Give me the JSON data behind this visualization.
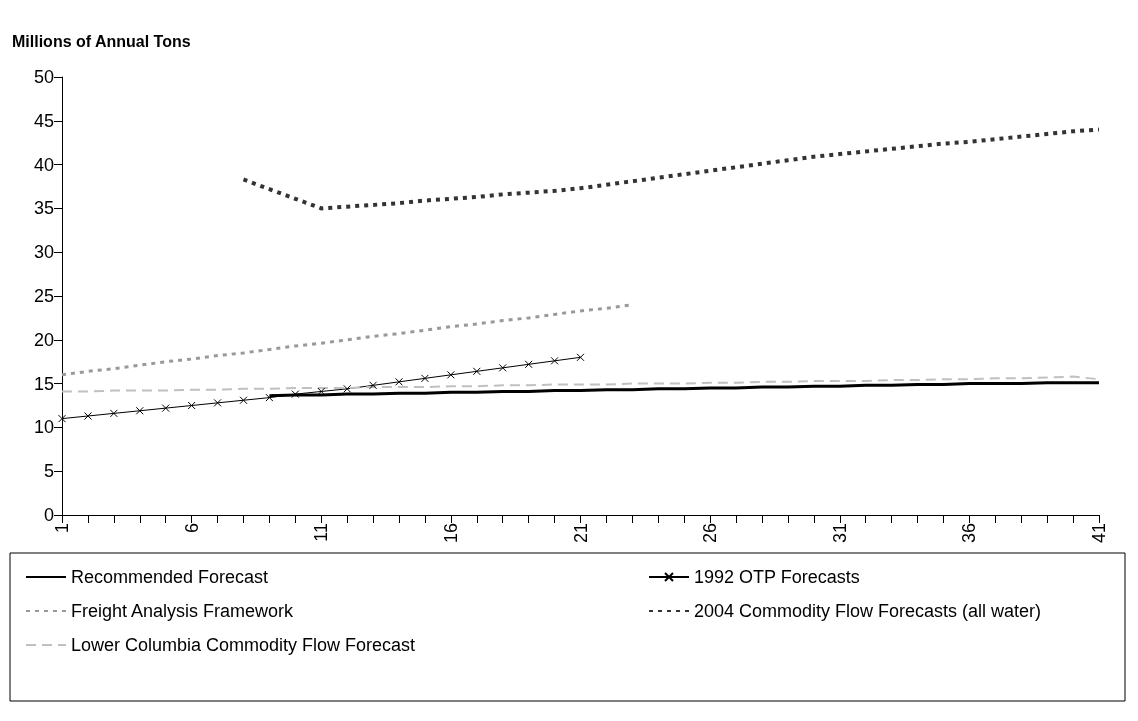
{
  "chart_data": {
    "type": "line",
    "ylabel": "Millions of Annual Tons",
    "categories": [
      "1",
      null,
      null,
      null,
      null,
      "6",
      null,
      null,
      null,
      null,
      "11",
      null,
      null,
      null,
      null,
      "16",
      null,
      null,
      null,
      null,
      "21",
      null,
      null,
      null,
      null,
      "26",
      null,
      null,
      null,
      null,
      "31",
      null,
      null,
      null,
      null,
      "36",
      null,
      null,
      null,
      null,
      "41"
    ],
    "ylim": [
      0,
      50
    ],
    "yticks": [
      0,
      5,
      10,
      15,
      20,
      25,
      30,
      35,
      40,
      45,
      50
    ],
    "grid": false,
    "legend": "bottom",
    "series": [
      {
        "name": "Recommended Forecast",
        "color": "#000000",
        "line_style": "solid",
        "marker": "none",
        "values": [
          null,
          null,
          null,
          null,
          null,
          null,
          null,
          null,
          13.6,
          13.7,
          13.7,
          13.8,
          13.8,
          13.9,
          13.9,
          14.0,
          14.0,
          14.1,
          14.1,
          14.2,
          14.2,
          14.3,
          14.3,
          14.4,
          14.4,
          14.5,
          14.5,
          14.6,
          14.6,
          14.7,
          14.7,
          14.8,
          14.8,
          14.9,
          14.9,
          15.0,
          15.0,
          15.0,
          15.1,
          15.1,
          15.1
        ]
      },
      {
        "name": "1992 OTP Forecasts",
        "color": "#000000",
        "line_style": "solid",
        "marker": "cross",
        "values": [
          11.0,
          11.3,
          11.6,
          11.9,
          12.2,
          12.5,
          12.8,
          13.1,
          13.4,
          13.8,
          14.1,
          14.4,
          14.8,
          15.2,
          15.6,
          16.0,
          16.4,
          16.8,
          17.2,
          17.6,
          18.0,
          null,
          null,
          null,
          null,
          null,
          null,
          null,
          null,
          null,
          null,
          null,
          null,
          null,
          null,
          null,
          null,
          null,
          null,
          null,
          null
        ]
      },
      {
        "name": "Freight Analysis Framework",
        "color": "#999999",
        "line_style": "dotted",
        "marker": "none",
        "values": [
          16.0,
          16.4,
          16.7,
          17.1,
          17.5,
          17.8,
          18.2,
          18.5,
          18.9,
          19.3,
          19.6,
          20.0,
          20.4,
          20.7,
          21.1,
          21.5,
          21.8,
          22.2,
          22.5,
          22.9,
          23.3,
          23.6,
          24.0,
          null,
          null,
          null,
          null,
          null,
          null,
          null,
          null,
          null,
          null,
          null,
          null,
          null,
          null,
          null,
          null,
          null,
          null
        ]
      },
      {
        "name": "2004 Commodity Flow Forecasts (all water)",
        "color": "#333333",
        "line_style": "dotted",
        "marker": "none",
        "values": [
          null,
          null,
          null,
          null,
          null,
          null,
          null,
          38.3,
          37.2,
          36.1,
          35.0,
          35.2,
          35.4,
          35.6,
          35.9,
          36.1,
          36.3,
          36.6,
          36.8,
          37.0,
          37.3,
          37.7,
          38.1,
          38.5,
          38.9,
          39.3,
          39.7,
          40.1,
          40.5,
          40.9,
          41.2,
          41.5,
          41.8,
          42.1,
          42.4,
          42.6,
          42.9,
          43.2,
          43.5,
          43.8,
          44.0
        ]
      },
      {
        "name": "Lower Columbia Commodity Flow Forecast",
        "color": "#c0c0c0",
        "line_style": "dashed",
        "marker": "none",
        "values": [
          14.1,
          14.1,
          14.2,
          14.2,
          14.2,
          14.3,
          14.3,
          14.4,
          14.4,
          14.5,
          14.5,
          14.5,
          14.6,
          14.6,
          14.6,
          14.7,
          14.7,
          14.8,
          14.8,
          14.9,
          14.9,
          14.9,
          15.0,
          15.0,
          15.0,
          15.1,
          15.1,
          15.2,
          15.2,
          15.3,
          15.3,
          15.3,
          15.4,
          15.4,
          15.5,
          15.5,
          15.6,
          15.6,
          15.7,
          15.8,
          15.5
        ]
      }
    ]
  }
}
